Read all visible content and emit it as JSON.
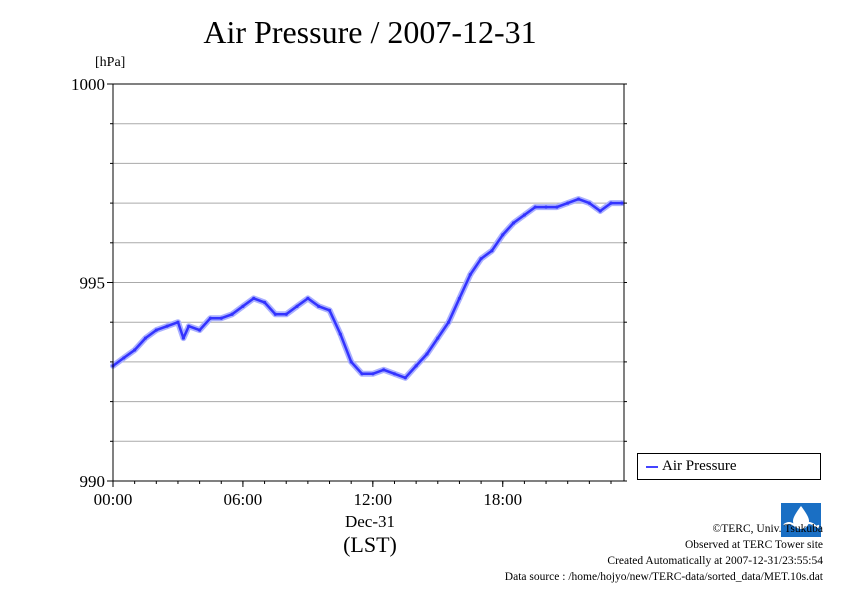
{
  "chart_data": {
    "type": "line",
    "title": "Air Pressure / 2007-12-31",
    "unit_label": "[hPa]",
    "xlabel": "(LST)",
    "x_date_label": "Dec-31",
    "x_tick_labels": [
      "00:00",
      "06:00",
      "12:00",
      "18:00"
    ],
    "x_ticks_hours": [
      0,
      6,
      12,
      18
    ],
    "xlim_hours": [
      0,
      23.6
    ],
    "y_tick_labels": [
      "990",
      "995",
      "1000"
    ],
    "y_ticks": [
      990,
      995,
      1000
    ],
    "ylim": [
      990,
      1000
    ],
    "grid": true,
    "legend_position": "right",
    "series": [
      {
        "name": "Air Pressure",
        "color": "#3333ff",
        "x_hours": [
          0,
          0.5,
          1,
          1.5,
          2,
          2.5,
          3,
          3.25,
          3.5,
          4,
          4.5,
          5,
          5.5,
          6,
          6.5,
          7,
          7.5,
          8,
          8.5,
          9,
          9.5,
          10,
          10.5,
          11,
          11.5,
          12,
          12.5,
          13,
          13.5,
          14,
          14.5,
          15,
          15.5,
          16,
          16.5,
          17,
          17.5,
          18,
          18.5,
          19,
          19.5,
          20,
          20.5,
          21,
          21.5,
          22,
          22.5,
          23,
          23.5
        ],
        "values": [
          992.9,
          993.1,
          993.3,
          993.6,
          993.8,
          993.9,
          994.0,
          993.6,
          993.9,
          993.8,
          994.1,
          994.1,
          994.2,
          994.4,
          994.6,
          994.5,
          994.2,
          994.2,
          994.4,
          994.6,
          994.4,
          994.3,
          993.7,
          993.0,
          992.7,
          992.7,
          992.8,
          992.7,
          992.6,
          992.9,
          993.2,
          993.6,
          994.0,
          994.6,
          995.2,
          995.6,
          995.8,
          996.2,
          996.5,
          996.7,
          996.9,
          996.9,
          996.9,
          997.0,
          997.1,
          997.0,
          996.8,
          997.0,
          997.0
        ]
      }
    ]
  },
  "credits": {
    "line1": "©TERC, Univ. Tsukuba",
    "line2": "Observed at TERC Tower site",
    "line3": "Created Automatically at 2007-12-31/23:55:54",
    "line4": "Data source : /home/hojyo/new/TERC-data/sorted_data/MET.10s.dat"
  },
  "logo": {
    "text": "TERC",
    "color": "#1a6fc4"
  }
}
